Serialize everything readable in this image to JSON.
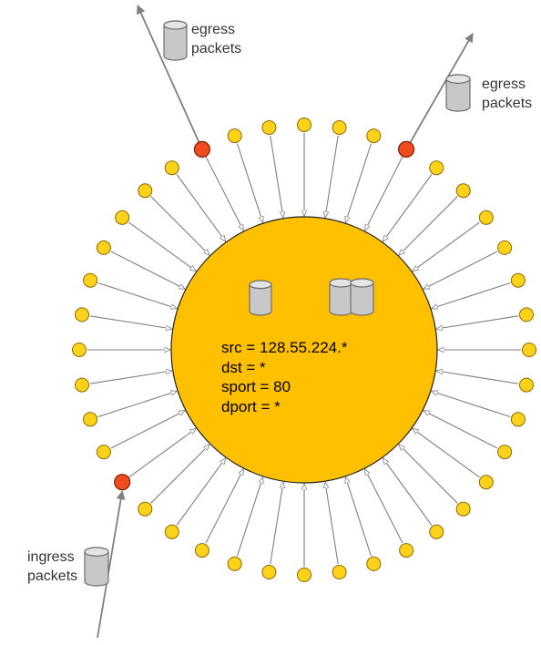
{
  "colors": {
    "switch_fill": "#FFC000",
    "switch_stroke": "#222222",
    "node_fill": "#FFD21A",
    "node_stroke": "#8A6A00",
    "active_node_fill": "#F04A1F",
    "active_node_stroke": "#7A2000",
    "packet_fill": "#C8C8C8",
    "packet_stroke": "#6E6E6E",
    "flow_arrow": "#7F7F7F",
    "link_arrow": "#7F7F7F"
  },
  "icons": {
    "packet": "packet-cylinder-icon",
    "packet_pair": "packet-pair-icon"
  },
  "labels": {
    "egress_left": [
      "egress",
      "packets"
    ],
    "egress_right": [
      "egress",
      "packets"
    ],
    "ingress": [
      "ingress",
      "packets"
    ]
  },
  "match_rule": {
    "src": "src = 128.55.224.*",
    "dst": "dst = *",
    "sport": "sport = 80",
    "dport": "dport = *"
  },
  "ring": {
    "node_count": 40,
    "active_nodes": [
      "upper-left",
      "upper-right",
      "lower-left"
    ]
  }
}
